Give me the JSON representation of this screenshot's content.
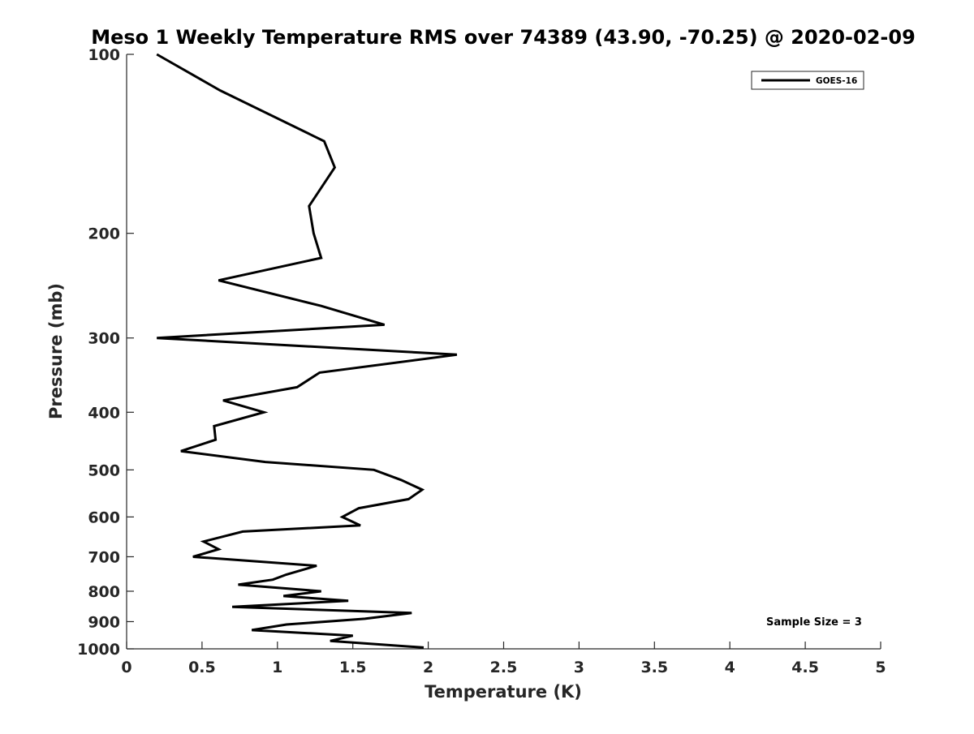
{
  "chart_data": {
    "type": "line",
    "title": "Meso 1 Weekly Temperature RMS over 74389 (43.90, -70.25) @ 2020-02-09",
    "xlabel": "Temperature (K)",
    "ylabel": "Pressure (mb)",
    "xlim": [
      0,
      5
    ],
    "ylim": [
      100,
      1000
    ],
    "y_scale": "log",
    "y_reversed": true,
    "x_ticks": [
      "0",
      "0.5",
      "1",
      "1.5",
      "2",
      "2.5",
      "3",
      "3.5",
      "4",
      "4.5",
      "5"
    ],
    "y_ticks": [
      "100",
      "200",
      "300",
      "400",
      "500",
      "600",
      "700",
      "800",
      "900",
      "1000"
    ],
    "grid": false,
    "legend_position": "top-right",
    "series": [
      {
        "name": "GOES-16",
        "color": "#000000",
        "points": [
          [
            0.2,
            100
          ],
          [
            0.62,
            115
          ],
          [
            1.31,
            140
          ],
          [
            1.38,
            155
          ],
          [
            1.21,
            180
          ],
          [
            1.24,
            200
          ],
          [
            1.29,
            220
          ],
          [
            0.61,
            240
          ],
          [
            1.29,
            265
          ],
          [
            1.71,
            285
          ],
          [
            0.2,
            300
          ],
          [
            2.19,
            320
          ],
          [
            1.28,
            343
          ],
          [
            1.13,
            363
          ],
          [
            0.64,
            382
          ],
          [
            0.91,
            400
          ],
          [
            0.58,
            422
          ],
          [
            0.59,
            445
          ],
          [
            0.36,
            465
          ],
          [
            0.92,
            485
          ],
          [
            1.64,
            500
          ],
          [
            1.82,
            520
          ],
          [
            1.96,
            540
          ],
          [
            1.87,
            560
          ],
          [
            1.54,
            580
          ],
          [
            1.43,
            600
          ],
          [
            1.55,
            620
          ],
          [
            0.77,
            635
          ],
          [
            0.51,
            660
          ],
          [
            0.61,
            680
          ],
          [
            0.44,
            700
          ],
          [
            1.26,
            725
          ],
          [
            1.06,
            750
          ],
          [
            0.97,
            765
          ],
          [
            0.74,
            780
          ],
          [
            1.29,
            800
          ],
          [
            1.04,
            815
          ],
          [
            1.47,
            830
          ],
          [
            0.7,
            850
          ],
          [
            1.89,
            870
          ],
          [
            1.58,
            890
          ],
          [
            1.06,
            910
          ],
          [
            0.83,
            930
          ],
          [
            1.5,
            950
          ],
          [
            1.35,
            970
          ],
          [
            1.97,
            995
          ]
        ]
      }
    ],
    "annotation": "Sample Size = 3"
  }
}
